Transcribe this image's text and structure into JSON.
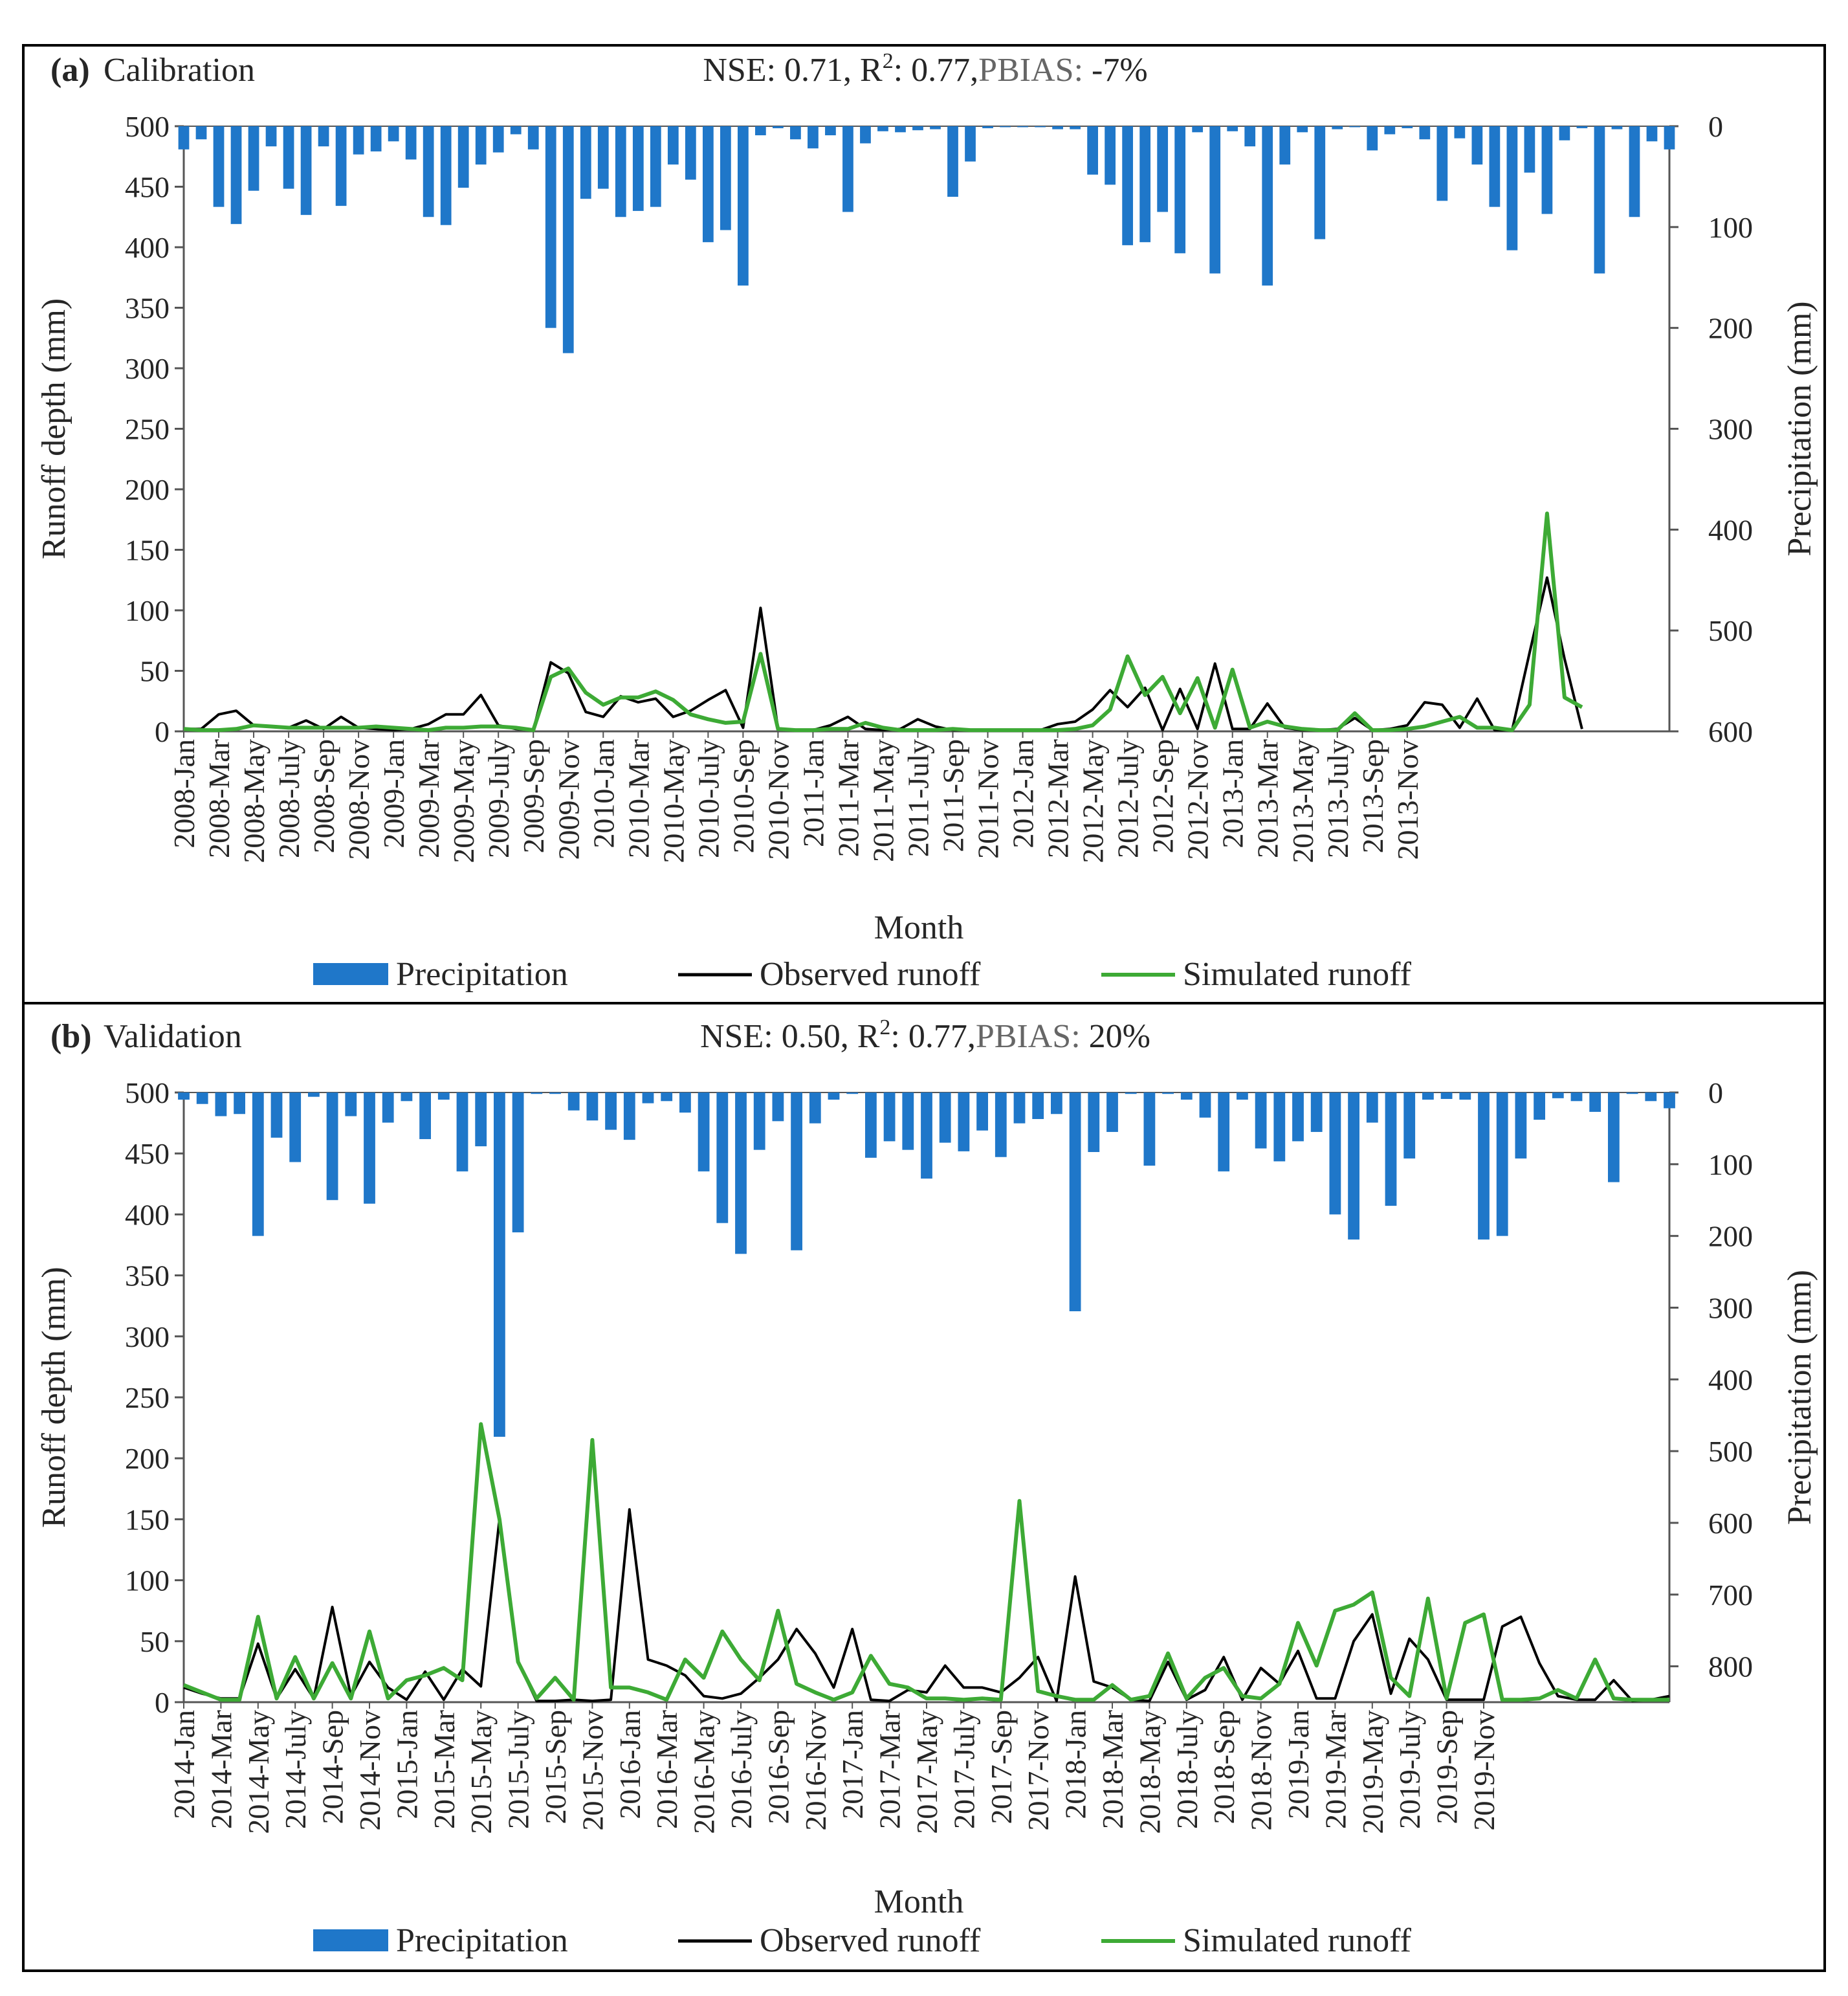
{
  "chart_data": [
    {
      "type": "bar+line",
      "panel_label": "(a)",
      "panel_name": "Calibration",
      "stats": {
        "nse_label": "NSE:",
        "nse": "0.71,",
        "r2_label": "R",
        "r2_sup": "2",
        "r2_suffix": ": 0.77,",
        "pbias_label": "PBIAS:",
        "pbias": "-7%"
      },
      "xlabel": "Month",
      "ylabel_left": "Runoff depth (mm)",
      "ylabel_right": "Precipitation (mm)",
      "ylim_left": [
        0,
        500
      ],
      "ylim_right": [
        0,
        600
      ],
      "yticks_left": [
        "0",
        "50",
        "100",
        "150",
        "200",
        "250",
        "300",
        "350",
        "400",
        "450",
        "500"
      ],
      "yticks_right": [
        "0",
        "100",
        "200",
        "300",
        "400",
        "500",
        "600"
      ],
      "start_year": 2008,
      "tick_labels": [
        "2008-Jan",
        "2008-Mar",
        "2008-May",
        "2008-July",
        "2008-Sep",
        "2008-Nov",
        "2009-Jan",
        "2009-Mar",
        "2009-May",
        "2009-July",
        "2009-Sep",
        "2009-Nov",
        "2010-Jan",
        "2010-Mar",
        "2010-May",
        "2010-July",
        "2010-Sep",
        "2010-Nov",
        "2011-Jan",
        "2011-Mar",
        "2011-May",
        "2011-July",
        "2011-Sep",
        "2011-Nov",
        "2012-Jan",
        "2012-Mar",
        "2012-May",
        "2012-July",
        "2012-Sep",
        "2012-Nov",
        "2013-Jan",
        "2013-Mar",
        "2013-May",
        "2013-July",
        "2013-Sep",
        "2013-Nov"
      ],
      "legend": [
        "Precipitation",
        "Observed runoff",
        "Simulated runoff"
      ],
      "colors": {
        "precipitation": "#1F77C9",
        "observed": "#000000",
        "simulated": "#3DAA35"
      },
      "series": [
        {
          "name": "Precipitation",
          "values": [
            23,
            13,
            80,
            97,
            64,
            20,
            62,
            88,
            20,
            79,
            28,
            25,
            15,
            33,
            90,
            98,
            61,
            38,
            26,
            8,
            23,
            200,
            225,
            72,
            62,
            90,
            84,
            80,
            38,
            53,
            115,
            103,
            158,
            9,
            2,
            13,
            22,
            9,
            85,
            17,
            5,
            6,
            4,
            3,
            70,
            35,
            2,
            1,
            1,
            1,
            3,
            3,
            48,
            58,
            118,
            115,
            85,
            126,
            6,
            146,
            5,
            20,
            158,
            38,
            6,
            112,
            3,
            1,
            24,
            8,
            2,
            13,
            74,
            12,
            38,
            80,
            123,
            46,
            87,
            14,
            2,
            146,
            3,
            90,
            15,
            23
          ],
          "axis": "right"
        },
        {
          "name": "Observed runoff",
          "values": [
            2,
            2,
            14,
            17,
            5,
            4,
            3,
            9,
            2,
            12,
            3,
            2,
            1,
            2,
            6,
            14,
            14,
            30,
            5,
            2,
            1,
            57,
            48,
            16,
            12,
            29,
            24,
            27,
            12,
            17,
            26,
            34,
            3,
            102,
            2,
            1,
            1,
            5,
            12,
            2,
            1,
            2,
            10,
            4,
            1,
            1,
            1,
            1,
            1,
            1,
            6,
            8,
            18,
            34,
            20,
            36,
            1,
            35,
            2,
            56,
            2,
            2,
            23,
            3,
            1,
            1,
            2,
            11,
            1,
            2,
            5,
            24,
            22,
            3,
            27,
            1,
            1,
            65,
            127,
            60,
            2
          ]
        },
        {
          "name": "Simulated runoff",
          "values": [
            2,
            1,
            1,
            2,
            5,
            4,
            3,
            3,
            3,
            3,
            3,
            4,
            3,
            2,
            1,
            3,
            3,
            4,
            4,
            3,
            1,
            45,
            52,
            32,
            22,
            28,
            28,
            33,
            26,
            14,
            10,
            7,
            8,
            64,
            2,
            1,
            1,
            2,
            2,
            7,
            3,
            1,
            1,
            1,
            2,
            1,
            1,
            1,
            1,
            1,
            1,
            2,
            5,
            18,
            62,
            30,
            45,
            15,
            44,
            3,
            51,
            3,
            8,
            4,
            2,
            1,
            1,
            15,
            1,
            1,
            2,
            4,
            8,
            12,
            3,
            3,
            1,
            22,
            180,
            28,
            20
          ]
        }
      ]
    },
    {
      "type": "bar+line",
      "panel_label": "(b)",
      "panel_name": "Validation",
      "stats": {
        "nse_label": "NSE:",
        "nse": "0.50,",
        "r2_label": "R",
        "r2_sup": "2",
        "r2_suffix": ": 0.77,",
        "pbias_label": "PBIAS:",
        "pbias": "20%"
      },
      "xlabel": "Month",
      "ylabel_left": "Runoff depth (mm)",
      "ylabel_right": "Precipitation (mm)",
      "ylim_left": [
        0,
        500
      ],
      "ylim_right": [
        0,
        850
      ],
      "yticks_left": [
        "0",
        "50",
        "100",
        "150",
        "200",
        "250",
        "300",
        "350",
        "400",
        "450",
        "500"
      ],
      "yticks_right": [
        "0",
        "100",
        "200",
        "300",
        "400",
        "500",
        "600",
        "700",
        "800"
      ],
      "right_tick_values": [
        0,
        100,
        200,
        300,
        400,
        500,
        600,
        700,
        800
      ],
      "start_year": 2014,
      "tick_labels": [
        "2014-Jan",
        "2014-Mar",
        "2014-May",
        "2014-July",
        "2014-Sep",
        "2014-Nov",
        "2015-Jan",
        "2015-Mar",
        "2015-May",
        "2015-July",
        "2015-Sep",
        "2015-Nov",
        "2016-Jan",
        "2016-Mar",
        "2016-May",
        "2016-July",
        "2016-Sep",
        "2016-Nov",
        "2017-Jan",
        "2017-Mar",
        "2017-May",
        "2017-July",
        "2017-Sep",
        "2017-Nov",
        "2018-Jan",
        "2018-Mar",
        "2018-May",
        "2018-July",
        "2018-Sep",
        "2018-Nov",
        "2019-Jan",
        "2019-Mar",
        "2019-May",
        "2019-July",
        "2019-Sep",
        "2019-Nov"
      ],
      "legend": [
        "Precipitation",
        "Observed runoff",
        "Simulated runoff"
      ],
      "colors": {
        "precipitation": "#1F77C9",
        "observed": "#000000",
        "simulated": "#3DAA35"
      },
      "series": [
        {
          "name": "Precipitation",
          "values": [
            10,
            16,
            33,
            30,
            200,
            63,
            97,
            6,
            150,
            33,
            155,
            42,
            12,
            65,
            10,
            110,
            75,
            480,
            195,
            2,
            2,
            25,
            39,
            52,
            66,
            15,
            12,
            28,
            110,
            182,
            225,
            80,
            40,
            220,
            43,
            10,
            2,
            91,
            68,
            80,
            120,
            70,
            82,
            53,
            90,
            43,
            37,
            30,
            305,
            83,
            55,
            2,
            102,
            2,
            10,
            35,
            110,
            10,
            78,
            96,
            68,
            55,
            170,
            205,
            42,
            158,
            92,
            10,
            9,
            10,
            205,
            200,
            92,
            38,
            8,
            12,
            27,
            125,
            2,
            12,
            22
          ]
        },
        {
          "name": "Observed runoff",
          "values": [
            12,
            7,
            3,
            3,
            48,
            3,
            27,
            3,
            78,
            5,
            33,
            12,
            2,
            25,
            2,
            27,
            13,
            150,
            33,
            1,
            1,
            2,
            1,
            2,
            158,
            35,
            30,
            22,
            5,
            3,
            7,
            20,
            35,
            60,
            40,
            12,
            60,
            2,
            1,
            10,
            8,
            30,
            12,
            12,
            8,
            20,
            37,
            1,
            103,
            17,
            12,
            2,
            1,
            33,
            2,
            10,
            37,
            2,
            28,
            15,
            42,
            3,
            3,
            50,
            72,
            7,
            52,
            35,
            2,
            2,
            2,
            62,
            70,
            32,
            5,
            2,
            2,
            18,
            1,
            2,
            5
          ]
        },
        {
          "name": "Simulated runoff",
          "values": [
            14,
            8,
            2,
            2,
            70,
            3,
            37,
            3,
            32,
            3,
            58,
            3,
            18,
            22,
            28,
            18,
            228,
            150,
            33,
            3,
            20,
            2,
            215,
            12,
            12,
            8,
            2,
            35,
            20,
            58,
            35,
            18,
            75,
            15,
            8,
            2,
            8,
            38,
            15,
            12,
            3,
            3,
            2,
            3,
            2,
            165,
            9,
            5,
            2,
            2,
            14,
            2,
            5,
            40,
            3,
            20,
            28,
            5,
            3,
            15,
            65,
            30,
            75,
            80,
            90,
            20,
            5,
            85,
            3,
            65,
            72,
            2,
            2,
            3,
            10,
            3,
            35,
            3,
            2,
            2,
            2
          ]
        }
      ]
    }
  ]
}
